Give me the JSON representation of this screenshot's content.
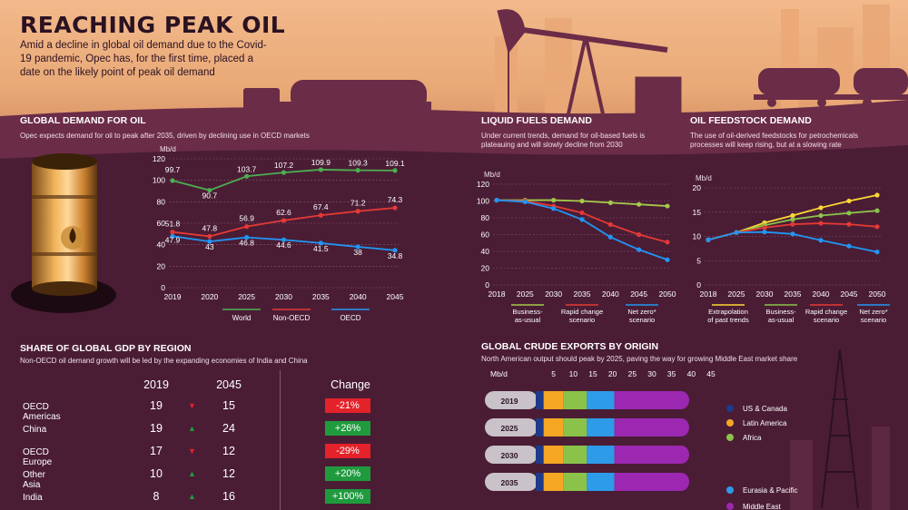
{
  "header": {
    "title": "REACHING PEAK OIL",
    "intro": "Amid a decline in global oil demand due to the Covid-19 pandemic, Opec has, for the first time, placed a date on the likely point of peak oil demand"
  },
  "colors": {
    "background": "#4a1d35",
    "sky": "#e9a977",
    "silhouette": "#6b2c47",
    "world": "#4caf50",
    "non_oecd": "#e53935",
    "oecd": "#2196f3",
    "yellow": "#fdd835",
    "green": "#8bc34a",
    "purple": "#9c27b0",
    "orange": "#f5a623",
    "light_blue": "#2d9be8",
    "negative": "#e4222a",
    "positive": "#1f9b3e"
  },
  "sections": {
    "global_demand": {
      "title": "GLOBAL DEMAND FOR OIL",
      "subtitle": "Opec expects demand for oil to peak after 2035, driven by declining use in OECD markets"
    },
    "liquid_fuels": {
      "title": "LIQUID FUELS DEMAND",
      "subtitle": "Under current trends, demand for oil-based fuels is plateauing and will slowly decline from 2030"
    },
    "feedstock": {
      "title": "OIL FEEDSTOCK DEMAND",
      "subtitle": "The use of oil-derived feedstocks for petrochemicals processes will keep rising, but at a slowing rate"
    },
    "gdp": {
      "title": "SHARE OF GLOBAL GDP BY REGION",
      "subtitle": "Non-OECD oil demand growth will be led by the expanding economies of India and China",
      "col_2019": "2019",
      "col_2045": "2045",
      "col_change": "Change",
      "rows": [
        {
          "region": "OECD Americas",
          "v2019": "19",
          "v2045": "15",
          "change": "-21%",
          "dir": "down"
        },
        {
          "region": "China",
          "v2019": "19",
          "v2045": "24",
          "change": "+26%",
          "dir": "up"
        },
        {
          "region": "OECD Europe",
          "v2019": "17",
          "v2045": "12",
          "change": "-29%",
          "dir": "down"
        },
        {
          "region": "Other Asia",
          "v2019": "10",
          "v2045": "12",
          "change": "+20%",
          "dir": "up"
        },
        {
          "region": "India",
          "v2019": "8",
          "v2045": "16",
          "change": "+100%",
          "dir": "up"
        }
      ]
    },
    "exports": {
      "title": "GLOBAL CRUDE EXPORTS BY ORIGIN",
      "subtitle": "North American output should peak by 2025, paving the way for growing Middle East market share"
    }
  },
  "chart_data": [
    {
      "type": "line",
      "ylabel": "Mb/d",
      "ylim": [
        0,
        120
      ],
      "yticks": [
        0,
        20,
        40,
        60,
        80,
        100,
        120
      ],
      "categories": [
        "2019",
        "2020",
        "2025",
        "2030",
        "2035",
        "2040",
        "2045"
      ],
      "series": [
        {
          "name": "World",
          "color": "#4caf50",
          "values": [
            99.7,
            90.7,
            103.7,
            107.2,
            109.9,
            109.3,
            109.1
          ],
          "labels": [
            "99.7",
            "90.7",
            "103.7",
            "107.2",
            "109.9",
            "109.3",
            "109.1"
          ]
        },
        {
          "name": "Non-OECD",
          "color": "#e53935",
          "values": [
            51.8,
            47.8,
            56.9,
            62.6,
            67.4,
            71.2,
            74.3
          ],
          "labels": [
            "51.8",
            "47.8",
            "56.9",
            "62.6",
            "67.4",
            "71.2",
            "74.3"
          ]
        },
        {
          "name": "OECD",
          "color": "#2196f3",
          "values": [
            47.9,
            43,
            46.8,
            44.6,
            41.5,
            38,
            34.8
          ],
          "labels": [
            "47.9",
            "43",
            "46.8",
            "44.6",
            "41.5",
            "38",
            "34.8"
          ]
        }
      ],
      "grid": true,
      "legend": "bottom"
    },
    {
      "type": "line",
      "ylabel": "Mb/d",
      "ylim": [
        0,
        120
      ],
      "yticks": [
        0,
        20,
        40,
        60,
        80,
        100,
        120
      ],
      "x": [
        2018,
        2025,
        2030,
        2035,
        2040,
        2045,
        2050
      ],
      "xticks": [
        "2018",
        "2025",
        "2030",
        "2035",
        "2040",
        "2045",
        "2050"
      ],
      "series": [
        {
          "name": "Business-as-usual",
          "color": "#a6c94a",
          "values": [
            101,
            101,
            101,
            100,
            98,
            96,
            94
          ]
        },
        {
          "name": "Rapid change scenario",
          "color": "#e53935",
          "values": [
            101,
            100,
            94,
            86,
            72,
            60,
            51
          ]
        },
        {
          "name": "Net zero* scenario",
          "color": "#2196f3",
          "values": [
            101,
            99,
            91,
            78,
            57,
            42,
            30
          ]
        }
      ],
      "legend_labels": [
        "Business-\nas-usual",
        "Rapid change\nscenario",
        "Net zero*\nscenario"
      ],
      "grid": true,
      "legend": "bottom"
    },
    {
      "type": "line",
      "ylabel": "Mb/d",
      "ylim": [
        0,
        20
      ],
      "yticks": [
        0,
        5,
        10,
        15,
        20
      ],
      "x": [
        2018,
        2025,
        2030,
        2035,
        2040,
        2045,
        2050
      ],
      "xticks": [
        "2018",
        "2025",
        "2030",
        "2035",
        "2040",
        "2045",
        "2050"
      ],
      "series": [
        {
          "name": "Extrapolation of past trends",
          "color": "#fdd835",
          "values": [
            9.3,
            10.8,
            12.8,
            14.3,
            15.9,
            17.3,
            18.5
          ]
        },
        {
          "name": "Business-as-usual",
          "color": "#8bc34a",
          "values": [
            9.3,
            10.8,
            12.3,
            13.5,
            14.3,
            14.8,
            15.3
          ]
        },
        {
          "name": "Rapid change scenario",
          "color": "#e53935",
          "values": [
            9.3,
            10.8,
            11.8,
            12.5,
            12.7,
            12.5,
            12.0
          ]
        },
        {
          "name": "Net zero* scenario",
          "color": "#2196f3",
          "values": [
            9.3,
            10.8,
            10.9,
            10.5,
            9.2,
            8.0,
            6.8
          ]
        }
      ],
      "legend_labels": [
        "Extrapolation\nof past trends",
        "Business-\nas-usual",
        "Rapid change\nscenario",
        "Net zero*\nscenario"
      ],
      "grid": true,
      "legend": "bottom"
    },
    {
      "type": "bar",
      "orientation": "horizontal",
      "stacked": true,
      "xlabel": "Mb/d",
      "xlim": [
        0,
        45
      ],
      "xticks": [
        "5",
        "10",
        "15",
        "20",
        "25",
        "30",
        "35",
        "40",
        "45"
      ],
      "categories": [
        "2019",
        "2025",
        "2030",
        "2035"
      ],
      "series": [
        {
          "name": "US & Canada",
          "color": "#1e3a8a",
          "values": [
            2,
            2,
            2,
            2
          ]
        },
        {
          "name": "Latin America",
          "color": "#f5a623",
          "values": [
            5,
            5,
            5,
            5
          ]
        },
        {
          "name": "Africa",
          "color": "#8bc34a",
          "values": [
            6,
            6,
            6,
            6
          ]
        },
        {
          "name": "Eurasia & Pacific",
          "color": "#2d9be8",
          "values": [
            7,
            7,
            7,
            7
          ]
        },
        {
          "name": "Middle East",
          "color": "#9c27b0",
          "values": [
            19,
            19,
            19,
            19
          ]
        }
      ]
    }
  ]
}
